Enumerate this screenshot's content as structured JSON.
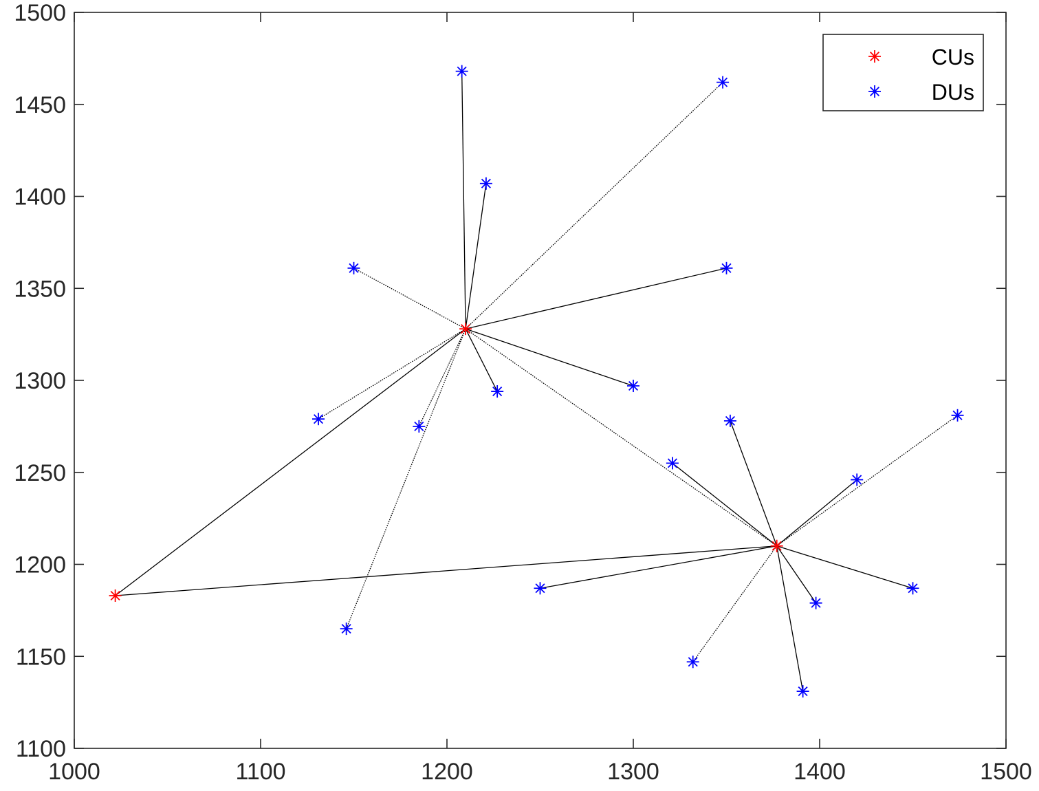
{
  "chart_data": {
    "type": "scatter",
    "title": "",
    "xlabel": "",
    "ylabel": "",
    "xlim": [
      1000,
      1500
    ],
    "ylim": [
      1100,
      1500
    ],
    "xticks": [
      1000,
      1100,
      1200,
      1300,
      1400,
      1500
    ],
    "yticks": [
      1100,
      1150,
      1200,
      1250,
      1300,
      1350,
      1400,
      1450,
      1500
    ],
    "xtick_labels": [
      "1000",
      "1100",
      "1200",
      "1300",
      "1400",
      "1500"
    ],
    "ytick_labels": [
      "1100",
      "1150",
      "1200",
      "1250",
      "1300",
      "1350",
      "1400",
      "1450",
      "1500"
    ],
    "grid": false,
    "legend_position": "top-right",
    "series": [
      {
        "name": "CUs",
        "color": "#ff0000",
        "marker": "asterisk",
        "points": [
          {
            "x": 1022,
            "y": 1183
          },
          {
            "x": 1210,
            "y": 1328
          },
          {
            "x": 1377,
            "y": 1210
          }
        ]
      },
      {
        "name": "DUs",
        "color": "#0000ff",
        "marker": "asterisk",
        "points": [
          {
            "x": 1208,
            "y": 1468
          },
          {
            "x": 1348,
            "y": 1462
          },
          {
            "x": 1221,
            "y": 1407
          },
          {
            "x": 1150,
            "y": 1361
          },
          {
            "x": 1350,
            "y": 1361
          },
          {
            "x": 1300,
            "y": 1297
          },
          {
            "x": 1227,
            "y": 1294
          },
          {
            "x": 1131,
            "y": 1279
          },
          {
            "x": 1185,
            "y": 1275
          },
          {
            "x": 1474,
            "y": 1281
          },
          {
            "x": 1352,
            "y": 1278
          },
          {
            "x": 1321,
            "y": 1255
          },
          {
            "x": 1420,
            "y": 1246
          },
          {
            "x": 1250,
            "y": 1187
          },
          {
            "x": 1450,
            "y": 1187
          },
          {
            "x": 1398,
            "y": 1179
          },
          {
            "x": 1146,
            "y": 1165
          },
          {
            "x": 1332,
            "y": 1147
          },
          {
            "x": 1391,
            "y": 1131
          }
        ]
      }
    ],
    "links": [
      {
        "from": [
          1022,
          1183
        ],
        "to": [
          1210,
          1328
        ],
        "style": "solid"
      },
      {
        "from": [
          1022,
          1183
        ],
        "to": [
          1377,
          1210
        ],
        "style": "solid"
      },
      {
        "from": [
          1210,
          1328
        ],
        "to": [
          1377,
          1210
        ],
        "style": "dotted"
      },
      {
        "from": [
          1210,
          1328
        ],
        "to": [
          1208,
          1468
        ],
        "style": "solid"
      },
      {
        "from": [
          1210,
          1328
        ],
        "to": [
          1348,
          1462
        ],
        "style": "dotted"
      },
      {
        "from": [
          1210,
          1328
        ],
        "to": [
          1221,
          1407
        ],
        "style": "solid"
      },
      {
        "from": [
          1210,
          1328
        ],
        "to": [
          1150,
          1361
        ],
        "style": "dotted"
      },
      {
        "from": [
          1210,
          1328
        ],
        "to": [
          1350,
          1361
        ],
        "style": "solid"
      },
      {
        "from": [
          1210,
          1328
        ],
        "to": [
          1300,
          1297
        ],
        "style": "solid"
      },
      {
        "from": [
          1210,
          1328
        ],
        "to": [
          1227,
          1294
        ],
        "style": "solid"
      },
      {
        "from": [
          1210,
          1328
        ],
        "to": [
          1131,
          1279
        ],
        "style": "dotted"
      },
      {
        "from": [
          1210,
          1328
        ],
        "to": [
          1185,
          1275
        ],
        "style": "dotted"
      },
      {
        "from": [
          1210,
          1328
        ],
        "to": [
          1146,
          1165
        ],
        "style": "dotted"
      },
      {
        "from": [
          1377,
          1210
        ],
        "to": [
          1474,
          1281
        ],
        "style": "dotted"
      },
      {
        "from": [
          1377,
          1210
        ],
        "to": [
          1352,
          1278
        ],
        "style": "solid"
      },
      {
        "from": [
          1377,
          1210
        ],
        "to": [
          1321,
          1255
        ],
        "style": "solid"
      },
      {
        "from": [
          1377,
          1210
        ],
        "to": [
          1420,
          1246
        ],
        "style": "solid"
      },
      {
        "from": [
          1377,
          1210
        ],
        "to": [
          1250,
          1187
        ],
        "style": "solid"
      },
      {
        "from": [
          1377,
          1210
        ],
        "to": [
          1450,
          1187
        ],
        "style": "solid"
      },
      {
        "from": [
          1377,
          1210
        ],
        "to": [
          1398,
          1179
        ],
        "style": "solid"
      },
      {
        "from": [
          1377,
          1210
        ],
        "to": [
          1332,
          1147
        ],
        "style": "dotted"
      },
      {
        "from": [
          1377,
          1210
        ],
        "to": [
          1391,
          1131
        ],
        "style": "solid"
      }
    ]
  },
  "legend": {
    "items": [
      {
        "label": "CUs",
        "color": "#ff0000"
      },
      {
        "label": "DUs",
        "color": "#0000ff"
      }
    ]
  }
}
